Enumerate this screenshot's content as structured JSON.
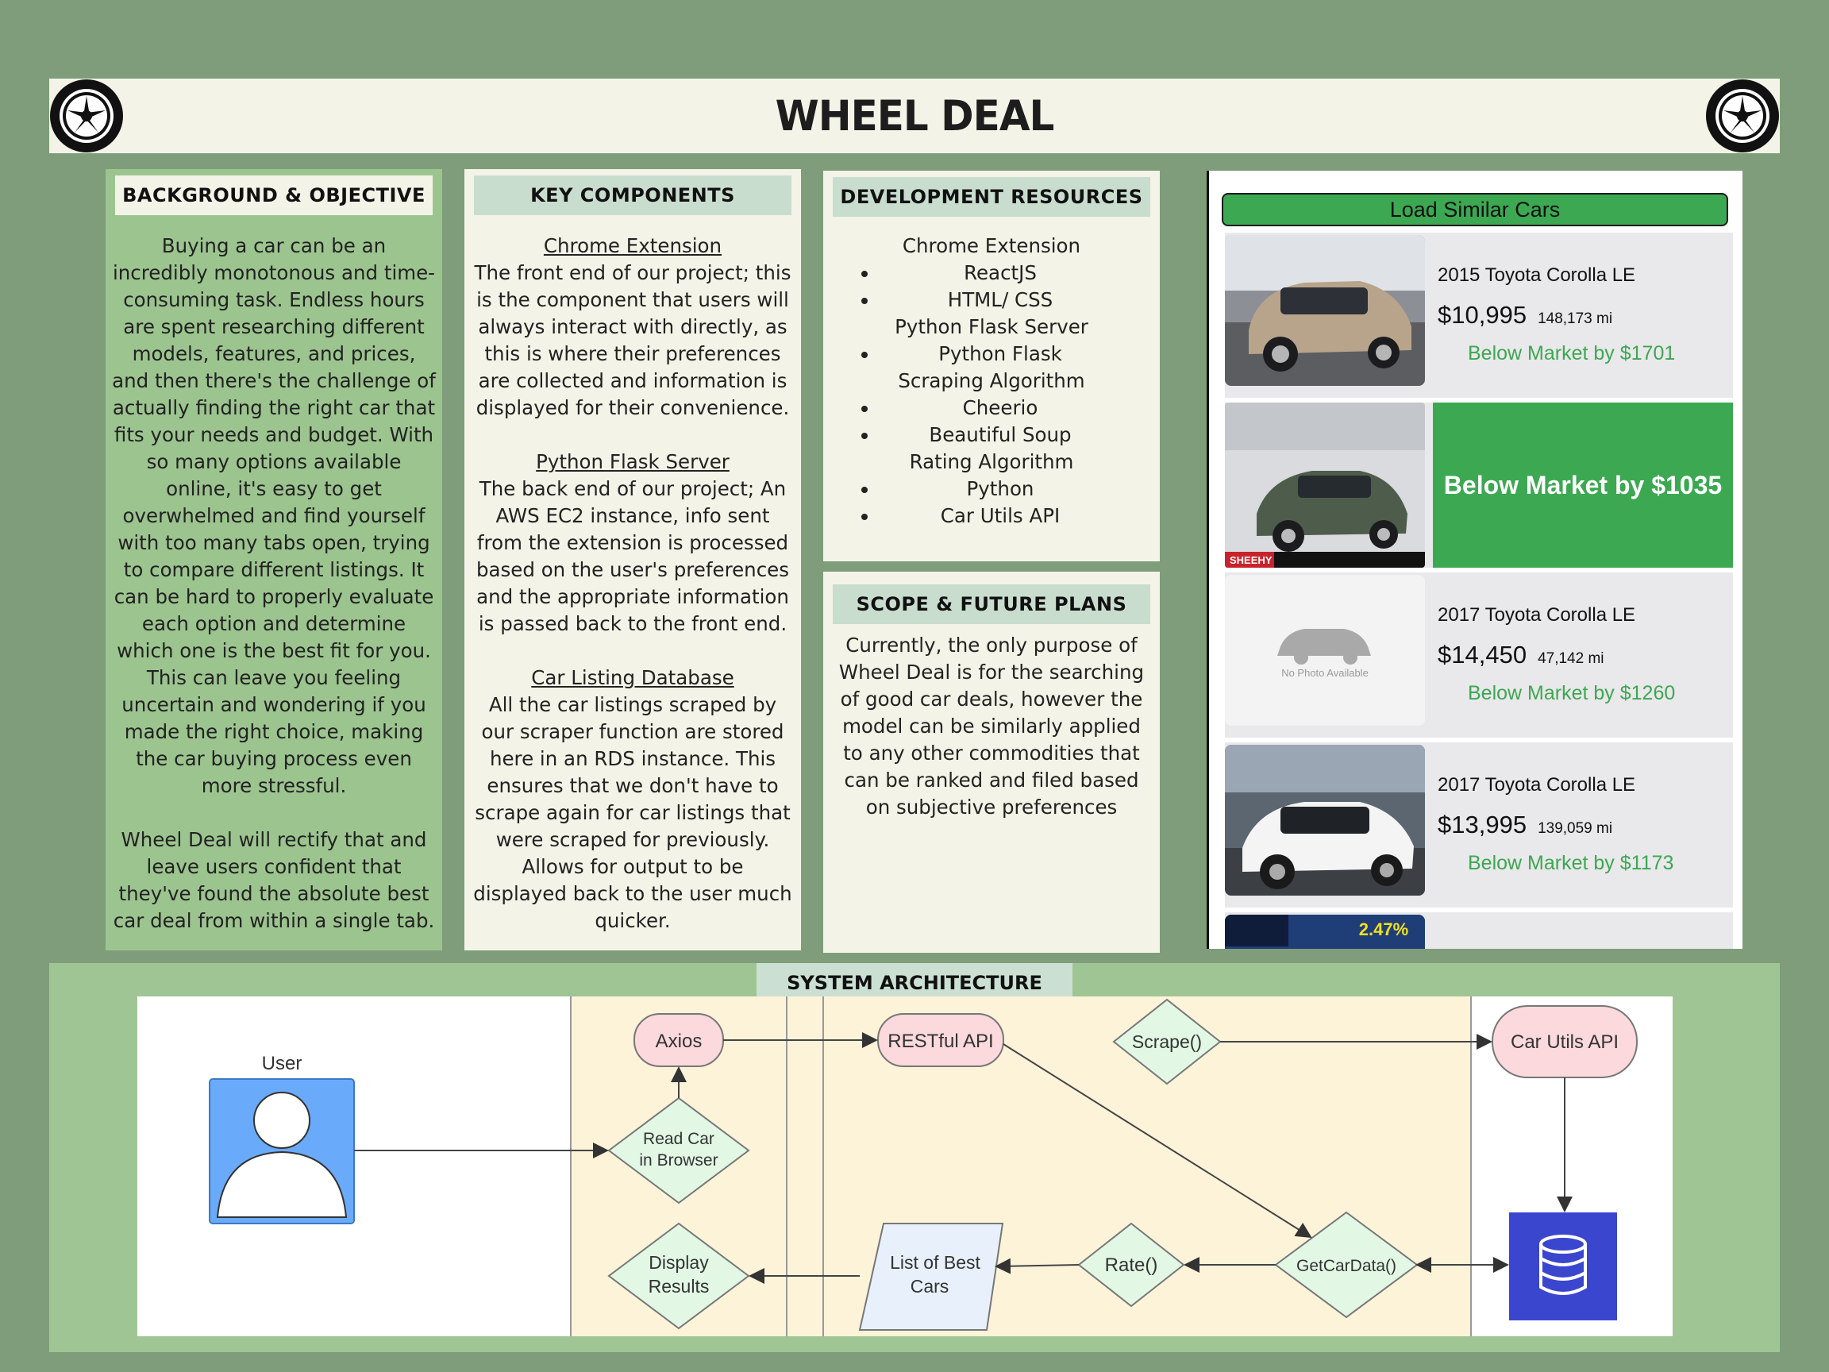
{
  "header": {
    "title": "WHEEL DEAL",
    "left_icon": "wheel-icon",
    "right_icon": "wheel-icon"
  },
  "background": {
    "heading": "BACKGROUND & OBJECTIVE",
    "para1": "Buying a car can be an incredibly monotonous and time-consuming task. Endless hours are spent researching different models, features, and prices, and then there's the challenge of actually finding the right car that fits your needs and budget. With so many options available online, it's easy to get overwhelmed and find yourself with too many tabs open, trying to compare different listings. It can be hard to properly evaluate each option and determine which one is the best fit for you. This can leave you feeling uncertain and wondering if you made the right choice, making the car buying process even more stressful.",
    "para2": "Wheel Deal will rectify that and leave users confident that they've found the absolute best car deal from within a single tab."
  },
  "key_components": {
    "heading": "KEY COMPONENTS",
    "items": [
      {
        "title": "Chrome Extension",
        "text": "The front end of our project; this is the component that users will always interact with directly, as this is where their preferences are collected and information is displayed for their convenience."
      },
      {
        "title": "Python Flask Server",
        "text": "The back end of our project; An AWS EC2 instance, info sent from the extension is processed based on the user's preferences and the appropriate information is passed back to the front end."
      },
      {
        "title": "Car Listing Database",
        "text": "All the car listings scraped by our scraper function are stored here in an RDS instance. This ensures that we don't have to scrape again for car listings that were scraped for previously. Allows for output to be displayed back to the user much quicker."
      }
    ]
  },
  "dev_resources": {
    "heading": "DEVELOPMENT RESOURCES",
    "groups": [
      {
        "title": "Chrome Extension",
        "items": [
          "ReactJS",
          "HTML/ CSS"
        ]
      },
      {
        "title": "Python Flask Server",
        "items": [
          "Python Flask"
        ]
      },
      {
        "title": "Scraping Algorithm",
        "items": [
          "Cheerio",
          "Beautiful Soup"
        ]
      },
      {
        "title": "Rating Algorithm",
        "items": [
          "Python",
          "Car Utils API"
        ]
      }
    ]
  },
  "scope": {
    "heading": "SCOPE & FUTURE PLANS",
    "text": "Currently, the only purpose of Wheel Deal is for the searching of good car deals, however the model can be similarly applied to any other commodities that can be ranked and filed based on subjective preferences"
  },
  "extension": {
    "button": "Load Similar Cars",
    "listings": [
      {
        "title": "2015 Toyota Corolla LE",
        "price": "$10,995",
        "miles": "148,173 mi",
        "below": "Below Market by $1701"
      },
      {
        "big_below": "Below Market by $1035",
        "dealer": "SHEEHY"
      },
      {
        "title": "2017 Toyota Corolla LE",
        "price": "$14,450",
        "miles": "47,142 mi",
        "below": "Below Market by $1260",
        "no_photo": "No Photo Available"
      },
      {
        "title": "2017 Toyota Corolla LE",
        "price": "$13,995",
        "miles": "139,059 mi",
        "below": "Below Market by $1173"
      }
    ],
    "partial_badge": "2.47%"
  },
  "architecture": {
    "heading": "SYSTEM ARCHITECTURE",
    "nodes": {
      "user": "User",
      "axios": "Axios",
      "read_car_1": "Read Car",
      "read_car_2": "in Browser",
      "display_1": "Display",
      "display_2": "Results",
      "restful": "RESTful API",
      "scrape": "Scrape()",
      "list_1": "List of Best",
      "list_2": "Cars",
      "rate": "Rate()",
      "getcar": "GetCarData()",
      "carutils": "Car Utils API"
    },
    "colors": {
      "pink": "#fcd9dc",
      "green_diamond": "#e2f8e5",
      "lane": "#fdf3d9",
      "user_blue": "#6aaafb",
      "db_blue": "#3b46ce"
    }
  }
}
